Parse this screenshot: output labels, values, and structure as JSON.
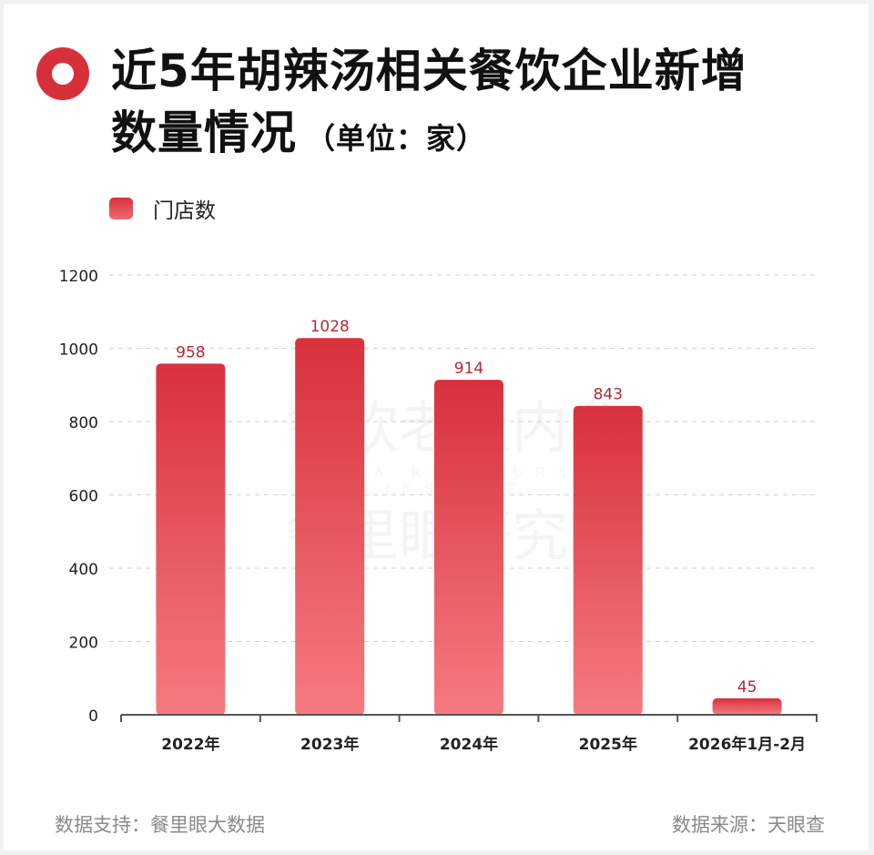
{
  "title": {
    "line1": "近5年胡辣汤相关餐饮企业新增",
    "line2": "数量情况",
    "unit": "（单位：家）"
  },
  "legend": {
    "label": "门店数"
  },
  "watermark": {
    "line1": "餐饮老板内参",
    "line2": "CHINA RESTAURANT INSIGHT",
    "line3": "餐里眼研究院"
  },
  "footer": {
    "left": "数据支持：餐里眼大数据",
    "right": "数据来源：天眼查"
  },
  "colors": {
    "accent": "#d7303a",
    "bar_top": "#d8313d",
    "bar_bottom": "#f57b80",
    "value_label": "#b22a33"
  },
  "chart_data": {
    "type": "bar",
    "title": "近5年胡辣汤相关餐饮企业新增数量情况（单位：家）",
    "categories": [
      "2022年",
      "2023年",
      "2024年",
      "2025年",
      "2026年1月-2月"
    ],
    "series": [
      {
        "name": "门店数",
        "values": [
          958,
          1028,
          914,
          843,
          45
        ]
      }
    ],
    "ylim": [
      0,
      1200
    ],
    "yticks": [
      0,
      200,
      400,
      600,
      800,
      1000,
      1200
    ],
    "grid": true,
    "legend": "top-left",
    "xlabel": "",
    "ylabel": ""
  }
}
